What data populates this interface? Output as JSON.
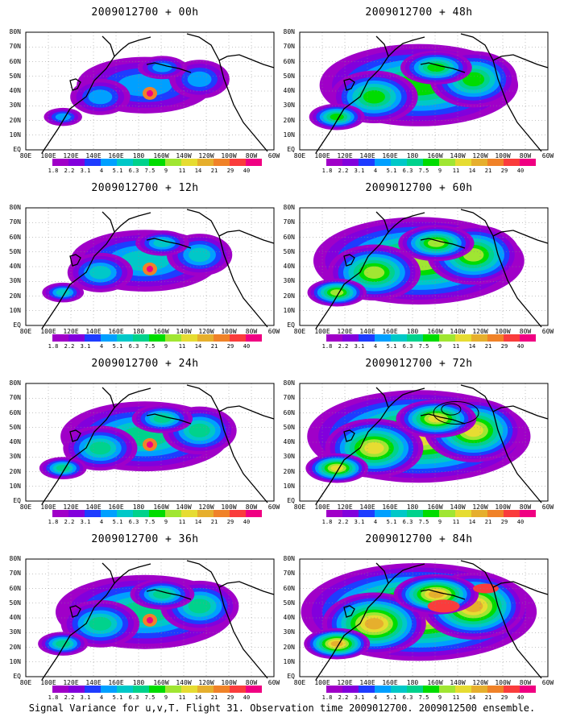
{
  "panels": [
    {
      "title": "2009012700 + 00h",
      "lead_hours": 0,
      "intensity": 0.35,
      "spread": 0.55,
      "hotspot": "moderate"
    },
    {
      "title": "2009012700 + 48h",
      "lead_hours": 48,
      "intensity": 0.62,
      "spread": 0.8,
      "hotspot": "none"
    },
    {
      "title": "2009012700 + 12h",
      "lead_hours": 12,
      "intensity": 0.45,
      "spread": 0.6,
      "hotspot": "moderate"
    },
    {
      "title": "2009012700 + 60h",
      "lead_hours": 60,
      "intensity": 0.7,
      "spread": 0.85,
      "hotspot": "none"
    },
    {
      "title": "2009012700 + 24h",
      "lead_hours": 24,
      "intensity": 0.5,
      "spread": 0.68,
      "hotspot": "moderate"
    },
    {
      "title": "2009012700 + 72h",
      "lead_hours": 72,
      "intensity": 0.8,
      "spread": 0.9,
      "hotspot": "ellipse"
    },
    {
      "title": "2009012700 + 36h",
      "lead_hours": 36,
      "intensity": 0.55,
      "spread": 0.72,
      "hotspot": "moderate"
    },
    {
      "title": "2009012700 + 84h",
      "lead_hours": 84,
      "intensity": 0.9,
      "spread": 0.95,
      "hotspot": "strong"
    }
  ],
  "lat_labels": [
    "80N",
    "70N",
    "60N",
    "50N",
    "40N",
    "30N",
    "20N",
    "10N",
    "EQ"
  ],
  "lon_labels": [
    "80E",
    "100E",
    "120E",
    "140E",
    "160E",
    "180",
    "160W",
    "140W",
    "120W",
    "100W",
    "80W",
    "60W"
  ],
  "colorbar": {
    "labels": [
      "1.8",
      "2.2",
      "3.1",
      "4",
      "5.1",
      "6.3",
      "7.5",
      "9",
      "11",
      "14",
      "21",
      "29",
      "40"
    ],
    "colors": [
      "#a000c8",
      "#8200dc",
      "#1e3cff",
      "#00a0ff",
      "#00c8c8",
      "#00d28c",
      "#00dc00",
      "#a0e632",
      "#e6dc32",
      "#e6af2d",
      "#f08228",
      "#fa3c3c",
      "#f00082"
    ]
  },
  "caption": "Signal Variance for u,v,T. Flight 31. Observation time 2009012700. 2009012500 ensemble."
}
